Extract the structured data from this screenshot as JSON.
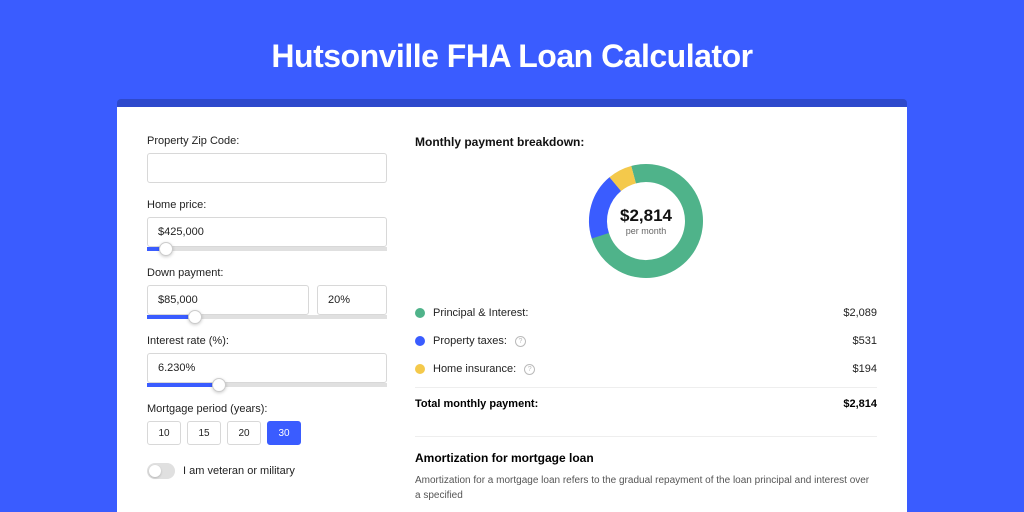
{
  "page": {
    "title": "Hutsonville FHA Loan Calculator"
  },
  "colors": {
    "brand": "#3a5cff",
    "shadow": "#2e49cc",
    "series_pi": "#4fb38a",
    "series_tax": "#3a5cff",
    "series_ins": "#f4c94b",
    "track": "#e5e9ec"
  },
  "form": {
    "zip": {
      "label": "Property Zip Code:",
      "value": ""
    },
    "home_price": {
      "label": "Home price:",
      "value": "$425,000",
      "slider_pct": 8
    },
    "down_payment": {
      "label": "Down payment:",
      "amount": "$85,000",
      "pct": "20%",
      "slider_pct": 20
    },
    "interest": {
      "label": "Interest rate (%):",
      "value": "6.230%",
      "slider_pct": 30
    },
    "period": {
      "label": "Mortgage period (years):",
      "options": [
        "10",
        "15",
        "20",
        "30"
      ],
      "active": "30"
    },
    "veteran": {
      "label": "I am veteran or military",
      "on": false
    }
  },
  "breakdown": {
    "title": "Monthly payment breakdown:",
    "donut": {
      "center_value": "$2,814",
      "center_sub": "per month",
      "slices": [
        {
          "key": "pi",
          "fraction": 0.742,
          "color": "#4fb38a"
        },
        {
          "key": "tax",
          "fraction": 0.189,
          "color": "#3a5cff"
        },
        {
          "key": "ins",
          "fraction": 0.069,
          "color": "#f4c94b"
        }
      ],
      "stroke_width": 18,
      "start_angle_deg": -105
    },
    "items": [
      {
        "key": "pi",
        "label": "Principal & Interest:",
        "value": "$2,089",
        "color": "#4fb38a",
        "info": false
      },
      {
        "key": "tax",
        "label": "Property taxes:",
        "value": "$531",
        "color": "#3a5cff",
        "info": true
      },
      {
        "key": "ins",
        "label": "Home insurance:",
        "value": "$194",
        "color": "#f4c94b",
        "info": true
      }
    ],
    "total": {
      "label": "Total monthly payment:",
      "value": "$2,814"
    }
  },
  "amort": {
    "title": "Amortization for mortgage loan",
    "text": "Amortization for a mortgage loan refers to the gradual repayment of the loan principal and interest over a specified"
  }
}
